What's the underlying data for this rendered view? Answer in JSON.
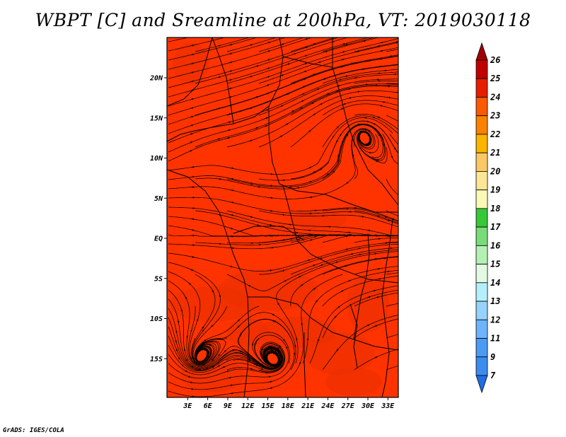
{
  "title": "WBPT [C] and Sreamline at 200hPa, VT: 2019030118",
  "footer": "GrADS: IGES/COLA",
  "map": {
    "lat_labels": [
      "20N",
      "15N",
      "10N",
      "5N",
      "EQ",
      "5S",
      "10S",
      "15S"
    ],
    "lon_labels": [
      "3E",
      "6E",
      "9E",
      "12E",
      "15E",
      "18E",
      "21E",
      "24E",
      "27E",
      "30E",
      "33E"
    ],
    "background_color": "#ff3300",
    "streamline_color": "#000000",
    "cyclones": [
      {
        "lon": 29,
        "lat": 13,
        "sense": "anticlockwise"
      },
      {
        "lon": 4.5,
        "lat": -15.2,
        "sense": "clockwise"
      },
      {
        "lon": 16,
        "lat": -15.6,
        "sense": "clockwise"
      }
    ]
  },
  "colorbar": {
    "levels": [
      "7",
      "9",
      "11",
      "12",
      "13",
      "14",
      "15",
      "16",
      "17",
      "18",
      "19",
      "20",
      "21",
      "22",
      "23",
      "24",
      "25",
      "26"
    ],
    "colors": [
      "#1e6ee6",
      "#3c8cf0",
      "#4b9bf5",
      "#6eb4fa",
      "#96d2fa",
      "#b4f0fa",
      "#e1fae1",
      "#b4f0b4",
      "#78dc78",
      "#37c837",
      "#fafab4",
      "#fae696",
      "#fac864",
      "#fab400",
      "#fa8200",
      "#fa5a00",
      "#e61e00",
      "#c00000",
      "#a00000"
    ]
  }
}
